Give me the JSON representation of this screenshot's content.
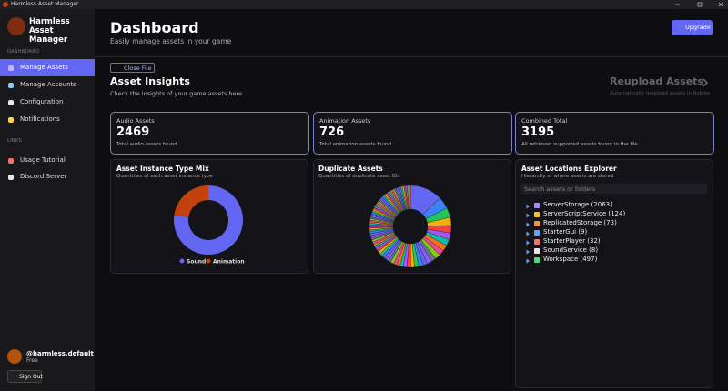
{
  "window": {
    "title": "Harmless Asset Manager"
  },
  "sidebar": {
    "app_name": "Harmless Asset Manager",
    "sections": [
      {
        "heading": "DASHBOARD",
        "items": [
          "Manage Assets",
          "Manage Accounts",
          "Configuration",
          "Notifications"
        ]
      },
      {
        "heading": "LINKS",
        "items": [
          "Usage Tutorial",
          "Discord Server"
        ]
      }
    ],
    "user": {
      "name": "@harmless.default",
      "plan": "Free"
    },
    "sign_out": "Sign Out"
  },
  "header": {
    "title": "Dashboard",
    "subtitle": "Easily manage assets in your game",
    "upgrade": "Upgrade"
  },
  "close_file": "Close File",
  "insights": {
    "title": "Asset Insights",
    "subtitle": "Check the insights of your game assets here"
  },
  "reupload": {
    "title": "Reupload Assets",
    "subtitle": "Automatically reupload assets in Roblox"
  },
  "stats": [
    {
      "label": "Audio Assets",
      "value": 2469,
      "caption": "Total audio assets found"
    },
    {
      "label": "Animation Assets",
      "value": 726,
      "caption": "Total animation assets found"
    },
    {
      "label": "Combined Total",
      "value": 3195,
      "caption": "All retrieved supported assets found in the file"
    }
  ],
  "charts": [
    {
      "type": "pie",
      "title": "Asset Instance Type Mix",
      "subtitle": "Quantities of each asset instance type",
      "categories": [
        "Sound",
        "Animation"
      ],
      "values": [
        2469,
        726
      ],
      "colors": [
        "#6366f1",
        "#c2410c"
      ]
    },
    {
      "type": "pie",
      "title": "Duplicate Assets",
      "subtitle": "Quantities of duplicate asset IDs",
      "values": [
        60,
        22,
        18,
        15,
        14,
        12,
        12,
        11,
        10,
        10,
        9,
        9,
        8,
        8,
        8,
        7,
        7,
        7,
        6,
        6,
        6,
        6,
        5,
        5,
        5,
        5,
        5,
        5,
        4,
        4,
        4,
        4,
        4,
        4,
        4,
        4,
        4,
        4,
        3,
        3,
        3,
        3,
        3,
        3,
        3,
        3,
        3,
        3,
        3,
        3,
        3,
        3,
        3,
        3,
        3,
        3,
        3,
        3,
        3,
        3,
        3,
        3,
        3,
        3,
        3,
        3,
        3,
        3,
        3,
        3,
        3,
        3,
        3,
        3,
        3,
        3,
        3,
        3,
        3,
        3
      ],
      "colors": [
        "#6366f1",
        "#3b82f6",
        "#22c55e",
        "#eab308",
        "#ef4444",
        "#a855f7",
        "#14b8a6",
        "#f97316",
        "#ec4899",
        "#84cc16",
        "#64748b",
        "#8b5cf6"
      ]
    }
  ],
  "explorer": {
    "title": "Asset Locations Explorer",
    "subtitle": "Hierarchy of where assets are stored",
    "search": "Search assets or folders",
    "items": [
      "ServerStorage (2063)",
      "ServerScriptService (124)",
      "ReplicatedStorage (73)",
      "StarterGui (9)",
      "StarterPlayer (32)",
      "SoundService (8)",
      "Workspace (497)"
    ]
  }
}
